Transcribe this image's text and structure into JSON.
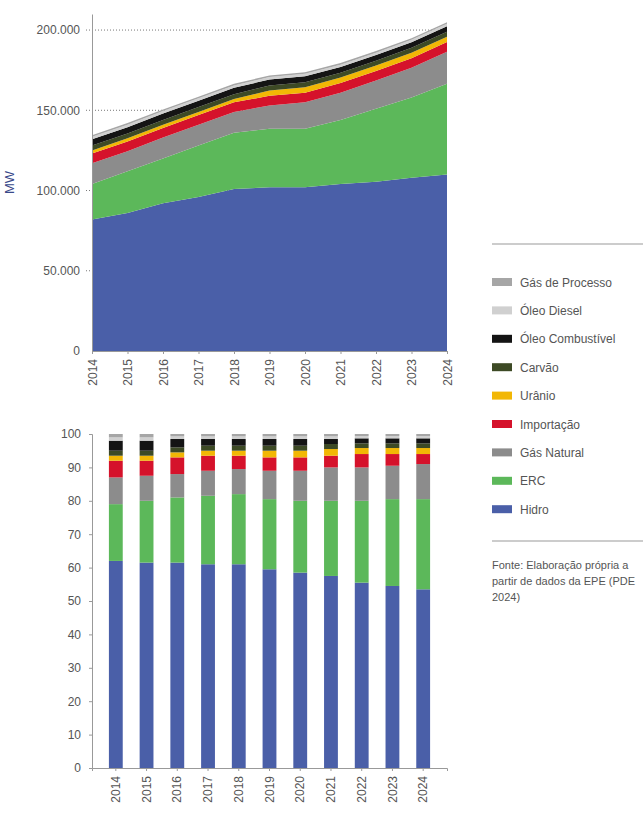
{
  "chart_data": [
    {
      "type": "area",
      "stacked": true,
      "grid": true,
      "y_label": "MW",
      "categories": [
        "2014",
        "2015",
        "2016",
        "2017",
        "2018",
        "2019",
        "2020",
        "2021",
        "2022",
        "2023",
        "2024"
      ],
      "ylim": [
        0,
        210000
      ],
      "yticks": [
        0,
        {
          "value": 50000,
          "label": "50.000"
        },
        {
          "value": 100000,
          "label": "100.000"
        },
        {
          "value": 150000,
          "label": "150.000"
        },
        {
          "value": 200000,
          "label": "200.000"
        }
      ],
      "series": [
        {
          "name": "Hidro",
          "color": "#4a5fa8",
          "values": [
            82000,
            86000,
            92000,
            96000,
            101000,
            102000,
            102000,
            104000,
            105500,
            108000,
            110000
          ]
        },
        {
          "name": "ERC",
          "color": "#5cb85a",
          "values": [
            22000,
            26000,
            28000,
            32000,
            35000,
            36500,
            36500,
            40000,
            45500,
            50000,
            56500
          ]
        },
        {
          "name": "Gás Natural",
          "color": "#8c8c8c",
          "values": [
            13000,
            12500,
            13000,
            13000,
            13000,
            14500,
            16500,
            17000,
            17500,
            18500,
            20000
          ]
        },
        {
          "name": "Importação",
          "color": "#d5122b",
          "values": [
            6000,
            6000,
            6000,
            6000,
            6000,
            6000,
            6000,
            6000,
            6000,
            6000,
            6000
          ]
        },
        {
          "name": "Urânio",
          "color": "#f2b705",
          "values": [
            2000,
            2000,
            2000,
            2000,
            2000,
            3400,
            3400,
            3400,
            3400,
            3400,
            3400
          ]
        },
        {
          "name": "Carvão",
          "color": "#3d4a25",
          "values": [
            3000,
            3000,
            3000,
            3000,
            3000,
            3000,
            3000,
            3000,
            3000,
            3000,
            3000
          ]
        },
        {
          "name": "Óleo Combustível",
          "color": "#141414",
          "values": [
            4000,
            4000,
            4000,
            4000,
            4000,
            3800,
            3800,
            3500,
            3500,
            3500,
            3500
          ]
        },
        {
          "name": "Óleo Diesel",
          "color": "#d0d0d0",
          "values": [
            1500,
            1500,
            1500,
            1500,
            1500,
            1500,
            1500,
            1500,
            1500,
            1500,
            1500
          ]
        },
        {
          "name": "Gás de Processo",
          "color": "#a6a6a6",
          "values": [
            1000,
            1000,
            1000,
            1000,
            1000,
            1000,
            1000,
            1000,
            1000,
            1000,
            1000
          ]
        }
      ]
    },
    {
      "type": "bar",
      "stacked": true,
      "grid": false,
      "legend": "right",
      "annotations": [
        "Fonte: Elaboração própria a partir de dados da EPE (PDE 2024)"
      ],
      "categories": [
        "2014",
        "2015",
        "2016",
        "2017",
        "2018",
        "2019",
        "2020",
        "2021",
        "2022",
        "2023",
        "2024"
      ],
      "ylim": [
        0,
        100
      ],
      "yticks": [
        0,
        10,
        20,
        30,
        40,
        50,
        60,
        70,
        80,
        90,
        100
      ],
      "series": [
        {
          "name": "Hidro",
          "color": "#4a5fa8",
          "values": [
            62,
            61.5,
            61.5,
            61,
            61,
            59.5,
            58.5,
            57.5,
            55.5,
            54.5,
            53.5
          ]
        },
        {
          "name": "ERC",
          "color": "#5cb85a",
          "values": [
            17,
            18.5,
            19.5,
            20.5,
            21,
            21,
            21.5,
            22.5,
            24.5,
            26,
            27
          ]
        },
        {
          "name": "Gás Natural",
          "color": "#8c8c8c",
          "values": [
            8,
            7.5,
            7,
            7.5,
            7.5,
            8.5,
            9,
            10,
            10,
            10,
            10.5
          ]
        },
        {
          "name": "Importação",
          "color": "#d5122b",
          "values": [
            5,
            4.5,
            5,
            4.5,
            4,
            4,
            4,
            3.5,
            4,
            3.5,
            3
          ]
        },
        {
          "name": "Urânio",
          "color": "#f2b705",
          "values": [
            1.5,
            1.5,
            1.5,
            1.5,
            1.5,
            2,
            2,
            2,
            1.8,
            1.8,
            1.8
          ]
        },
        {
          "name": "Carvão",
          "color": "#3d4a25",
          "values": [
            1.5,
            1.5,
            1.5,
            1.5,
            1.5,
            1.5,
            1.5,
            1.5,
            1.4,
            1.4,
            1.4
          ]
        },
        {
          "name": "Óleo Combustível",
          "color": "#141414",
          "values": [
            3,
            3,
            2.5,
            2,
            2,
            2,
            2,
            1.5,
            1.5,
            1.5,
            1.5
          ]
        },
        {
          "name": "Óleo Diesel",
          "color": "#d0d0d0",
          "values": [
            1,
            1,
            0.8,
            0.8,
            0.8,
            0.8,
            0.8,
            0.8,
            0.7,
            0.7,
            0.7
          ]
        },
        {
          "name": "Gás de Processo",
          "color": "#a6a6a6",
          "values": [
            1,
            1,
            0.7,
            0.7,
            0.7,
            0.7,
            0.7,
            0.7,
            0.6,
            0.6,
            0.6
          ]
        }
      ]
    }
  ]
}
